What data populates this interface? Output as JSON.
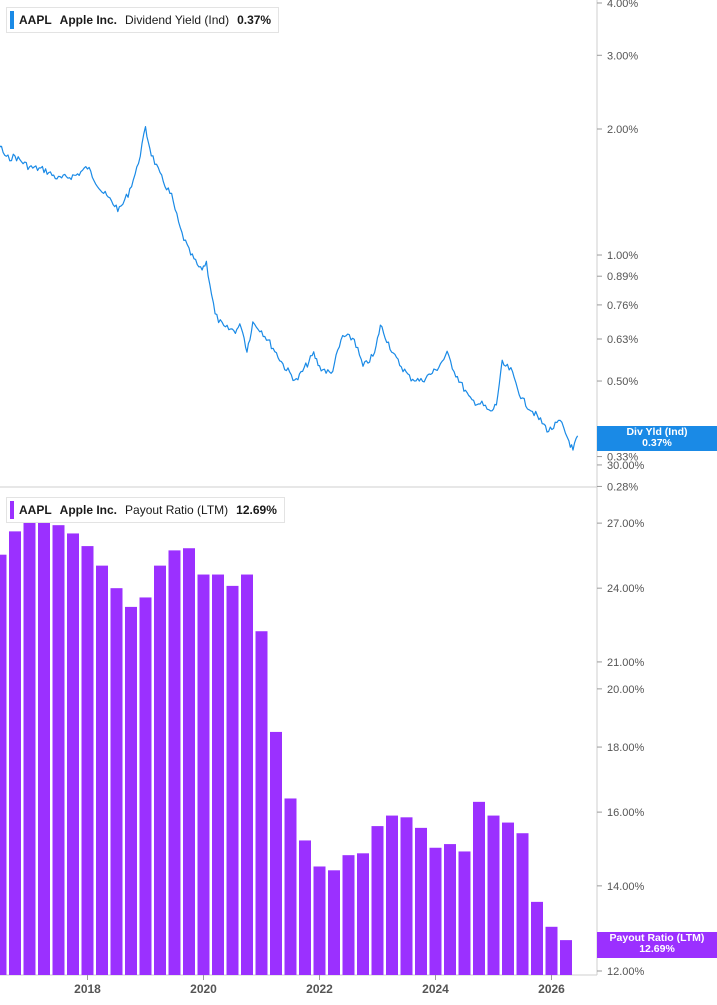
{
  "charts": [
    {
      "ticker": "AAPL",
      "company": "Apple Inc.",
      "metric": "Dividend Yield (Ind)",
      "value": "0.37%",
      "flag_label": "Div Yld (Ind)",
      "flag_value": "0.37%",
      "color": "#1a8ae6"
    },
    {
      "ticker": "AAPL",
      "company": "Apple Inc.",
      "metric": "Payout Ratio (LTM)",
      "value": "12.69%",
      "flag_label": "Payout Ratio (LTM)",
      "flag_value": "12.69%",
      "color": "#9b30ff"
    }
  ],
  "chart_data": [
    {
      "type": "line",
      "series": [
        {
          "name": "Dividend Yield (Ind)",
          "x": [
            2016.0,
            2016.15,
            2016.35,
            2016.6,
            2016.75,
            2017.0,
            2017.25,
            2017.5,
            2017.8,
            2018.0,
            2018.25,
            2018.55,
            2018.7,
            2018.85,
            2019.0,
            2019.1,
            2019.25,
            2019.45,
            2019.6,
            2019.75,
            2019.95,
            2020.05,
            2020.2,
            2020.35,
            2020.55,
            2020.65,
            2020.75,
            2020.85,
            2021.0,
            2021.2,
            2021.4,
            2021.6,
            2021.9,
            2022.0,
            2022.2,
            2022.4,
            2022.6,
            2022.75,
            2022.95,
            2023.05,
            2023.3,
            2023.55,
            2023.75,
            2024.0,
            2024.2,
            2024.35,
            2024.6,
            2024.8,
            2024.95,
            2025.05,
            2025.15,
            2025.3,
            2025.5,
            2025.7,
            2025.95,
            2026.15,
            2026.3,
            2026.37,
            2026.45
          ],
          "y": [
            2.5,
            2.15,
            2.0,
            1.7,
            1.72,
            1.62,
            1.6,
            1.52,
            1.55,
            1.62,
            1.42,
            1.28,
            1.4,
            1.6,
            2.0,
            1.75,
            1.55,
            1.38,
            1.15,
            1.02,
            0.92,
            0.96,
            0.72,
            0.67,
            0.66,
            0.68,
            0.59,
            0.69,
            0.66,
            0.6,
            0.54,
            0.5,
            0.58,
            0.54,
            0.52,
            0.64,
            0.63,
            0.54,
            0.58,
            0.68,
            0.57,
            0.51,
            0.5,
            0.53,
            0.58,
            0.52,
            0.45,
            0.44,
            0.42,
            0.44,
            0.55,
            0.53,
            0.45,
            0.42,
            0.38,
            0.4,
            0.36,
            0.34,
            0.37
          ]
        }
      ],
      "x_ticks": [
        "2018",
        "2020",
        "2022",
        "2024",
        "2026"
      ],
      "y_ticks": [
        "4.00%",
        "3.00%",
        "2.00%",
        "1.00%",
        "0.89%",
        "0.76%",
        "0.63%",
        "0.50%",
        "0.37",
        "0.33%",
        "0.28%"
      ],
      "y_scale": "log"
    },
    {
      "type": "bar",
      "series": [
        {
          "name": "Payout Ratio (LTM)",
          "x": [
            2016.5,
            2016.75,
            2017.0,
            2017.25,
            2017.5,
            2017.75,
            2018.0,
            2018.25,
            2018.5,
            2018.75,
            2019.0,
            2019.25,
            2019.5,
            2019.75,
            2020.0,
            2020.25,
            2020.5,
            2020.75,
            2021.0,
            2021.25,
            2021.5,
            2021.75,
            2022.0,
            2022.25,
            2022.5,
            2022.75,
            2023.0,
            2023.25,
            2023.5,
            2023.75,
            2024.0,
            2024.25,
            2024.5,
            2024.75,
            2025.0,
            2025.25,
            2025.5,
            2025.75,
            2026.0,
            2026.25
          ],
          "y": [
            25.5,
            26.6,
            27.2,
            27.1,
            26.9,
            26.5,
            25.9,
            25.0,
            24.0,
            23.2,
            23.6,
            25.0,
            25.7,
            25.8,
            24.6,
            24.6,
            24.1,
            24.6,
            22.2,
            18.5,
            16.4,
            15.2,
            14.5,
            14.4,
            14.8,
            14.85,
            15.6,
            15.9,
            15.85,
            15.55,
            15.0,
            15.1,
            14.9,
            16.3,
            15.9,
            15.7,
            15.4,
            13.6,
            13.0,
            12.69
          ]
        }
      ],
      "x_ticks": [
        "2018",
        "2020",
        "2022",
        "2024",
        "2026"
      ],
      "y_ticks": [
        "30.00%",
        "27.00%",
        "24.00%",
        "21.00%",
        "20.00%",
        "18.00%",
        "16.00%",
        "14.00%",
        "12.00%"
      ],
      "y_scale": "log"
    }
  ]
}
